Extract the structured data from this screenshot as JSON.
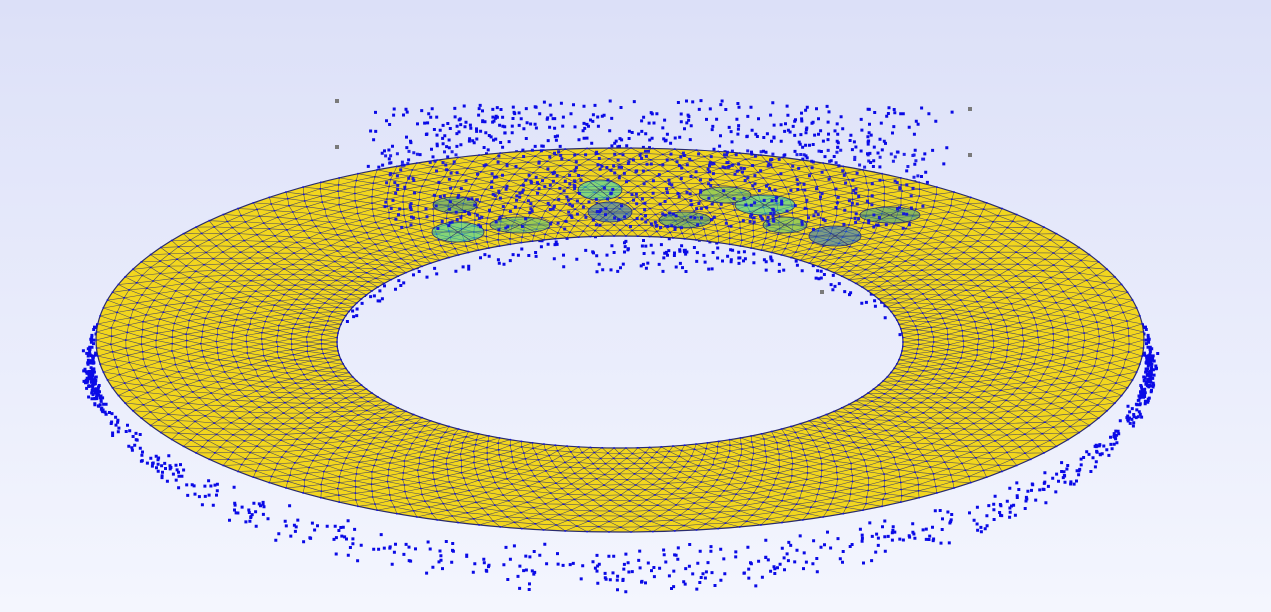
{
  "viewer": {
    "background_top": "#dce0f8",
    "background_bottom": "#f4f6fe"
  },
  "mesh": {
    "surface_color": "#f2d61e",
    "edge_color": "#2a2c6e",
    "node_color": "#1010dd",
    "point_color": "#0a0ae6",
    "marker_color": "#7a7a7a",
    "inclusion_colors": [
      "#3a9e8a",
      "#2cd6c0",
      "#5ac47a",
      "#1f6fd6"
    ]
  }
}
